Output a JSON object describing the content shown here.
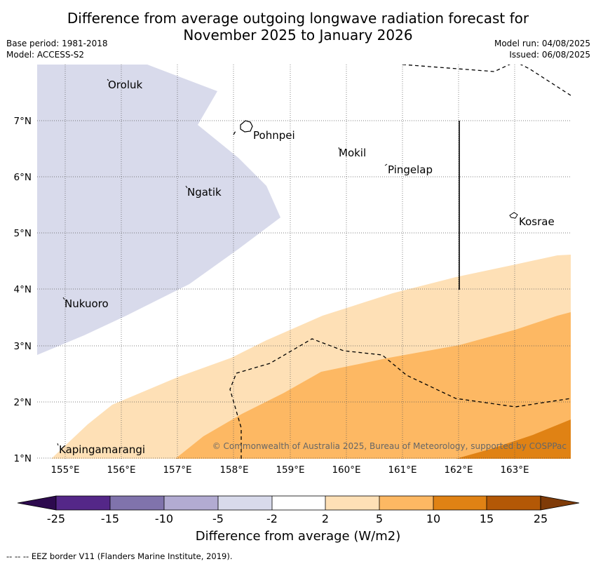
{
  "header": {
    "title_line1": "Difference from average outgoing longwave radiation forecast for",
    "title_line2": "November 2025 to January 2026",
    "base_period": "Base period: 1981-2018",
    "model": "Model: ACCESS-S2",
    "model_run": "Model run: 04/08/2025",
    "issued": "Issued: 06/08/2025"
  },
  "map": {
    "lon_labels": [
      "155°E",
      "156°E",
      "157°E",
      "158°E",
      "159°E",
      "160°E",
      "161°E",
      "162°E",
      "163°E"
    ],
    "lat_labels": [
      "7°N",
      "6°N",
      "5°N",
      "4°N",
      "3°N",
      "2°N",
      "1°N"
    ],
    "places": [
      "Oroluk",
      "Pohnpei",
      "Mokil",
      "Pingelap",
      "Ngatik",
      "Kosrae",
      "Nukuoro",
      "Kapingamarangi"
    ],
    "copyright": "© Commonwealth of Australia 2025, Bureau of Meteorology, supported by COSPPac"
  },
  "colorbar": {
    "ticks": [
      "-25",
      "-15",
      "-10",
      "-5",
      "-2",
      "2",
      "5",
      "10",
      "15",
      "25"
    ],
    "colors": [
      "#2d0a4e",
      "#542788",
      "#8073ac",
      "#b2abd2",
      "#d8daeb",
      "#ffffff",
      "#fee0b6",
      "#fdb863",
      "#e08214",
      "#b35806",
      "#7f3b08"
    ],
    "label": "Difference from average (W/m2)"
  },
  "footnote": "--  --  -- EEZ border V11 (Flanders Marine Institute, 2019)."
}
